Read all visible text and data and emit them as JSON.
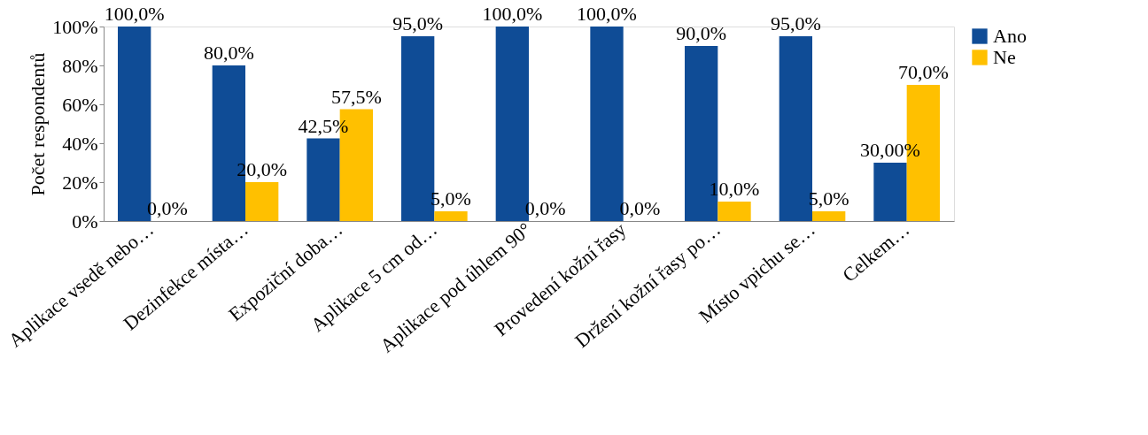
{
  "chart_data": {
    "type": "bar",
    "ylabel": "Počet respondentů",
    "categories": [
      "Aplikace vsedě nebo…",
      "Dezinfekce místa…",
      "Expoziční doba…",
      "Aplikace 5 cm od…",
      "Aplikace pod úhlem 90°",
      "Provedení kožní řasy",
      "Držení kožní řasy po…",
      "Místo vpichu se…",
      "Celkem…"
    ],
    "series": [
      {
        "name": "Ano",
        "color": "#0f4c96",
        "values": [
          100,
          80,
          42.5,
          95,
          100,
          100,
          90,
          95,
          30
        ],
        "value_labels": [
          "100,0%",
          "80,0%",
          "42,5%",
          "95,0%",
          "100,0%",
          "100,0%",
          "90,0%",
          "95,0%",
          "30,00%"
        ]
      },
      {
        "name": "Ne",
        "color": "#ffc000",
        "values": [
          0,
          20,
          57.5,
          5,
          0,
          0,
          10,
          5,
          70
        ],
        "value_labels": [
          "0,0%",
          "20,0%",
          "57,5%",
          "5,0%",
          "0,0%",
          "0,0%",
          "10,0%",
          "5,0%",
          "70,0%"
        ]
      }
    ],
    "ylim": [
      0,
      100
    ],
    "yticks": [
      {
        "value": 0,
        "label": "0%"
      },
      {
        "value": 20,
        "label": "20%"
      },
      {
        "value": 40,
        "label": "40%"
      },
      {
        "value": 60,
        "label": "60%"
      },
      {
        "value": 80,
        "label": "80%"
      },
      {
        "value": 100,
        "label": "100%"
      }
    ],
    "grid": false,
    "legend": "right"
  }
}
